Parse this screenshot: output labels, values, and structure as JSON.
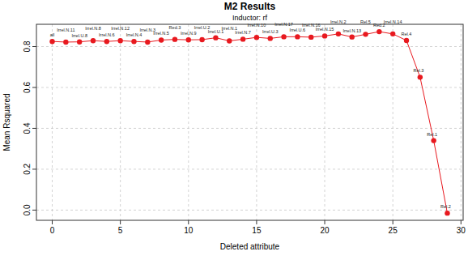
{
  "chart_data": {
    "type": "line",
    "title": "M2 Results",
    "subtitle": "Inductor:  rf",
    "x_label": "Deleted attribute",
    "y_label": "Mean Rsquared",
    "x": [
      0,
      1,
      2,
      3,
      4,
      5,
      6,
      7,
      8,
      9,
      10,
      11,
      12,
      13,
      14,
      15,
      16,
      17,
      18,
      19,
      20,
      21,
      22,
      23,
      24,
      25,
      26,
      27,
      28,
      29
    ],
    "values": [
      0.825,
      0.822,
      0.823,
      0.829,
      0.825,
      0.829,
      0.825,
      0.822,
      0.832,
      0.835,
      0.833,
      0.834,
      0.843,
      0.828,
      0.836,
      0.845,
      0.84,
      0.848,
      0.848,
      0.846,
      0.852,
      0.862,
      0.847,
      0.86,
      0.873,
      0.862,
      0.83,
      0.65,
      0.34,
      -0.015
    ],
    "annotations": [
      "all",
      "Irrel.N.11",
      "Irrel.U.8",
      "Irrel.N.8",
      "Irrel.N.6",
      "Irrel.N.12",
      "Irrel.N.4",
      "Irrel.N.3",
      "Irrel.N.5",
      "Red.3",
      "Irrel.N.9",
      "Irrel.U.2",
      "Irrel.U.1",
      "Irrel.N.1",
      "Irrel.N.7",
      "Irrel.N.10",
      "Irrel.U.3",
      "Irrel.N.17",
      "Irrel.U.6",
      "Irrel.N.16",
      "Irrel.N.15",
      "Irrel.N.2",
      "Irrel.N.13",
      "Rel.5",
      "Red.2",
      "Irrel.N.14",
      "Rel.4",
      "Rel.3",
      "Rel.1",
      "Rel.2"
    ],
    "color": "#e8191f",
    "marker": "circle",
    "grid": true,
    "xlim": [
      -1.16,
      30.16
    ],
    "ylim": [
      -0.05,
      0.909
    ],
    "xticks": [
      0,
      5,
      10,
      15,
      20,
      25,
      30
    ],
    "yticks": [
      {
        "value": 0,
        "label": "0.0"
      },
      {
        "value": 0.2,
        "label": "0.2"
      },
      {
        "value": 0.4,
        "label": "0.4"
      },
      {
        "value": 0.6,
        "label": "0.6"
      },
      {
        "value": 0.8,
        "label": "0.8"
      }
    ]
  }
}
